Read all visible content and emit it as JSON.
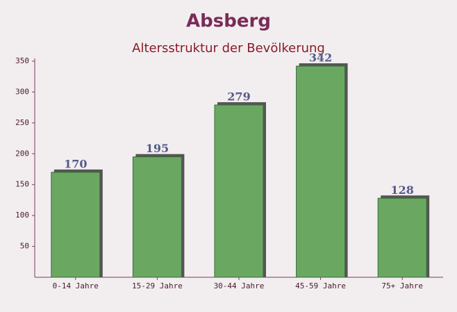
{
  "chart_data": {
    "type": "bar",
    "title": "Absberg",
    "subtitle": "Altersstruktur der Bevölkerung",
    "categories": [
      "0-14 Jahre",
      "15-29 Jahre",
      "30-44 Jahre",
      "45-59 Jahre",
      "75+ Jahre"
    ],
    "values": [
      170,
      195,
      279,
      342,
      128
    ],
    "color": "#6aa862",
    "ylim": [
      0,
      350
    ],
    "yticks": [
      50,
      100,
      150,
      200,
      250,
      300,
      350
    ]
  }
}
